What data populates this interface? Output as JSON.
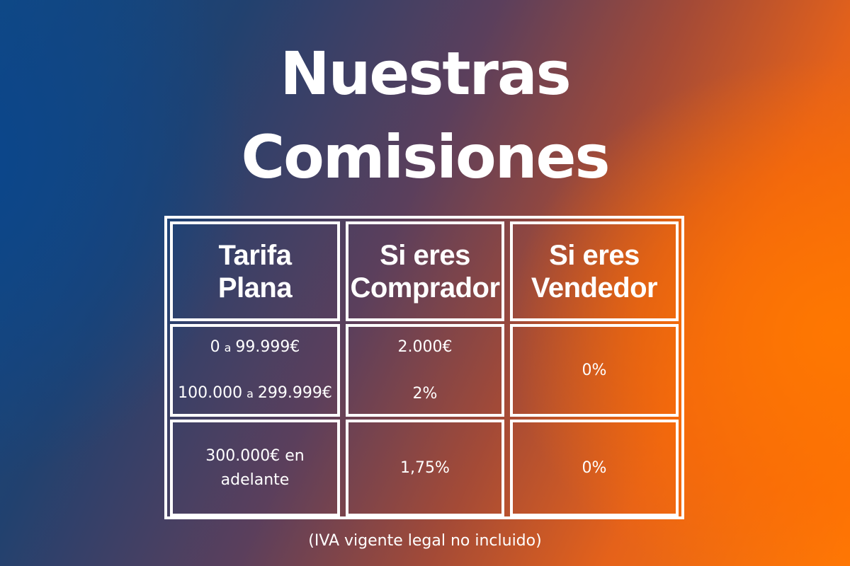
{
  "title": {
    "line1": "Nuestras",
    "line2": "Comisiones"
  },
  "table": {
    "headers": [
      {
        "line1": "Tarifa",
        "line2": "Plana"
      },
      {
        "line1": "Si eres",
        "line2": "Comprador"
      },
      {
        "line1": "Si eres",
        "line2": "Vendedor"
      }
    ],
    "rows": [
      {
        "ranges": [
          {
            "from": "0",
            "connector": "a",
            "to": "99.999€"
          },
          {
            "from": "100.000",
            "connector": "a",
            "to": "299.999€"
          }
        ],
        "buyer": [
          "2.000€",
          "2%"
        ],
        "seller": "0%"
      },
      {
        "range_line1": "300.000€ en",
        "range_line2": "adelante",
        "buyer": "1,75%",
        "seller": "0%"
      }
    ]
  },
  "footnote": "(IVA vigente legal no incluido)",
  "colors": {
    "background_left": "#0d4a86",
    "background_right": "#ff7a05",
    "text": "#ffffff",
    "table_border": "#ffffff"
  }
}
